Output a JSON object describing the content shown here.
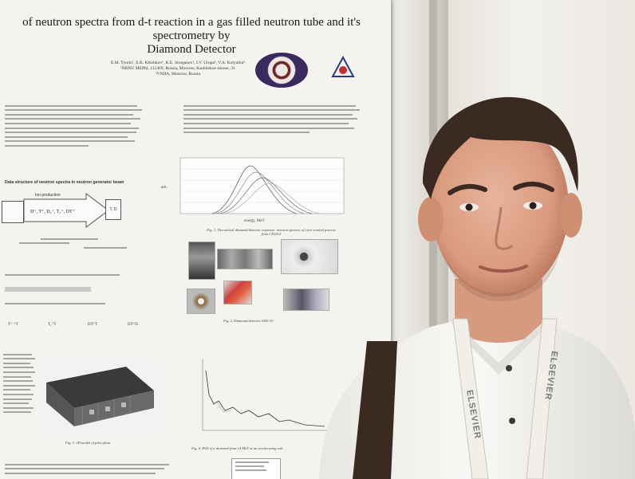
{
  "poster": {
    "title_line1": "of neutron spectra from d-t reaction in a gas filled neutron tube and it's spectrometry by",
    "title_line2": "Diamond Detector",
    "authors": "E.M. Tyurin¹, E.B. Khizhkov¹, K.E. Stroganov¹, I.V. Urupa¹, V.A. Kolyubin²",
    "affiliation1": "¹NRNU MEPhI, 115409, Russia, Moscow, Kashirskoe shosse, 31",
    "affiliation2": "²VNIIA, Moscow, Russia",
    "section_heading": "Data structure of neutron spectra in neutron generator beam",
    "flow_box1": "Ion production",
    "flow_box2": "D⁺, T⁺, D₂⁺, T₂⁺, DT⁺",
    "flow_box3": "T, D",
    "fig1_caption": "Fig. 1. Theoretical diamond detector response: neutron spectra, of corn created process from CE2012",
    "fig2_caption": "Fig. 2. Diamond detector ASD-3V",
    "fig3_caption": "Fig. 3. 3D model of pilot plant",
    "fig4_caption": "Fig. 4. PSN of a diamond from 14 MeV at an accelerating volt",
    "row_labels": [
      "T⁺ ⁺T",
      "T₂⁺T",
      "DT⁺T",
      "DT⁺D"
    ],
    "chart_ylabel": "arb.",
    "chart_xlabel": "energy, MeV"
  },
  "lanyard": {
    "text": "ELSEVIER"
  }
}
